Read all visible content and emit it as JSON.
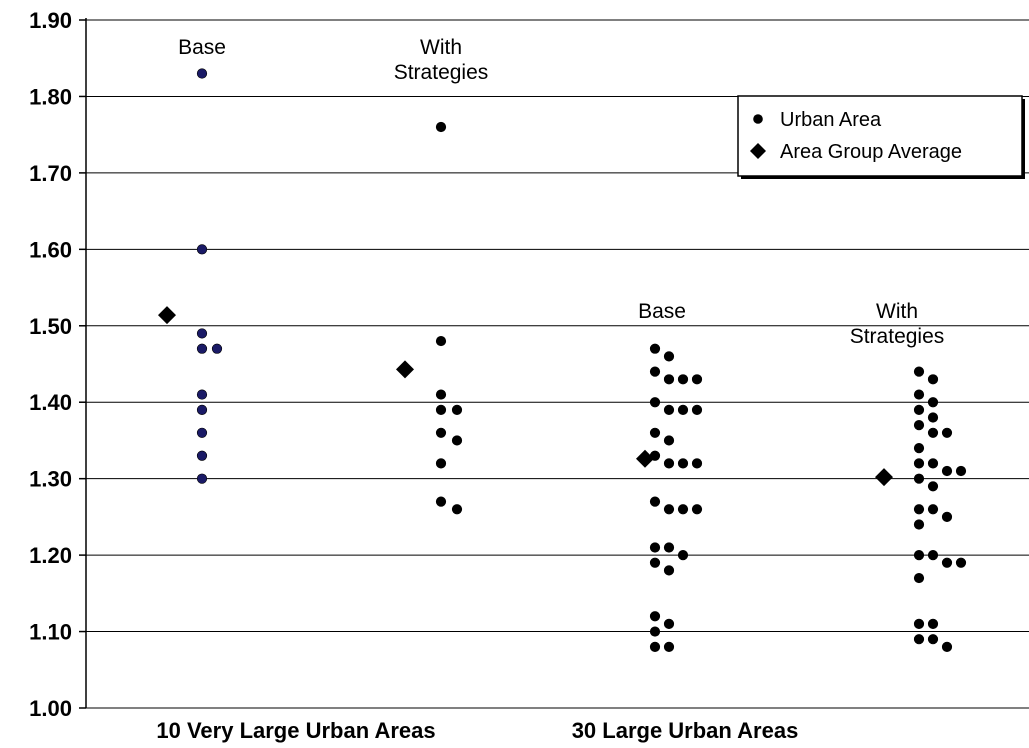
{
  "chart_data": {
    "type": "scatter",
    "title": "",
    "xlabel": "",
    "ylabel": "",
    "ylim": [
      1.0,
      1.9
    ],
    "y_ticks": [
      "1.00",
      "1.10",
      "1.20",
      "1.30",
      "1.40",
      "1.50",
      "1.60",
      "1.70",
      "1.80",
      "1.90"
    ],
    "grid": true,
    "legend_position": "top-right",
    "legend": [
      {
        "label": "Urban Area",
        "marker": "circle"
      },
      {
        "label": "Area Group Average",
        "marker": "diamond"
      }
    ],
    "categories": [
      "10 Very Large Urban Areas",
      "30 Large Urban Areas"
    ],
    "groups": [
      {
        "category": "10 Very Large Urban Areas",
        "label_lines": [
          "Base"
        ],
        "average": 1.514,
        "urban_areas": [
          1.83,
          1.6,
          1.49,
          1.47,
          1.47,
          1.41,
          1.39,
          1.36,
          1.33,
          1.3
        ],
        "point_color": "#1a1a66"
      },
      {
        "category": "10 Very Large Urban Areas",
        "label_lines": [
          "With",
          "Strategies"
        ],
        "average": 1.443,
        "urban_areas": [
          1.76,
          1.48,
          1.41,
          1.39,
          1.39,
          1.36,
          1.35,
          1.32,
          1.27,
          1.26
        ],
        "point_color": "#000000"
      },
      {
        "category": "30 Large Urban Areas",
        "label_lines": [
          "Base"
        ],
        "average": 1.326,
        "urban_areas": [
          1.47,
          1.46,
          1.44,
          1.43,
          1.43,
          1.43,
          1.4,
          1.39,
          1.39,
          1.39,
          1.36,
          1.35,
          1.33,
          1.32,
          1.32,
          1.32,
          1.27,
          1.26,
          1.26,
          1.26,
          1.21,
          1.21,
          1.2,
          1.19,
          1.18,
          1.12,
          1.11,
          1.1,
          1.08,
          1.08
        ],
        "point_color": "#000000"
      },
      {
        "category": "30 Large Urban Areas",
        "label_lines": [
          "With",
          "Strategies"
        ],
        "average": 1.302,
        "urban_areas": [
          1.44,
          1.43,
          1.41,
          1.4,
          1.39,
          1.38,
          1.37,
          1.36,
          1.36,
          1.34,
          1.32,
          1.32,
          1.31,
          1.31,
          1.3,
          1.29,
          1.26,
          1.26,
          1.25,
          1.24,
          1.2,
          1.2,
          1.19,
          1.19,
          1.17,
          1.11,
          1.11,
          1.09,
          1.09,
          1.08
        ],
        "point_color": "#000000"
      }
    ]
  }
}
